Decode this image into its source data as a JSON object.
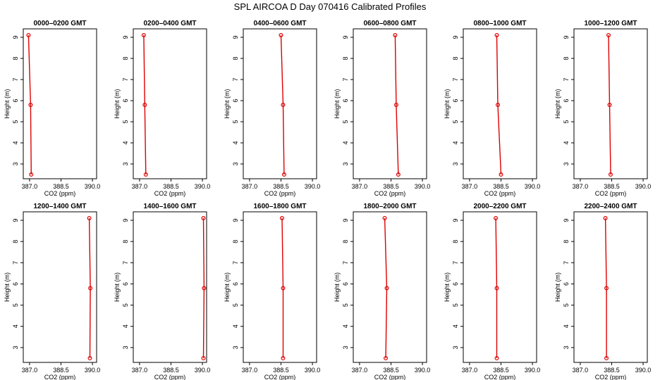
{
  "title": "SPL AIRCOA D  Day 070416  Calibrated Profiles",
  "colors": {
    "series": "#dd0000",
    "axes": "#000000",
    "background": "#ffffff"
  },
  "chart_data": {
    "type": "line",
    "layout": "2 rows x 6 panels",
    "xlabel": "CO2 (ppm)",
    "ylabel": "Height (m)",
    "xlim": [
      386.7,
      390.2
    ],
    "ylim": [
      2.3,
      9.4
    ],
    "xticks": [
      387.0,
      388.5,
      390.0
    ],
    "xtick_labels": [
      "387.0",
      "388.5",
      "390.0"
    ],
    "yticks": [
      3,
      4,
      5,
      6,
      7,
      8,
      9
    ],
    "yticks_labels": [
      "3",
      "4",
      "5",
      "6",
      "7",
      "8",
      "9"
    ],
    "grid": false,
    "panels": [
      {
        "title": "0000–0200 GMT",
        "x": [
          386.95,
          387.05,
          387.08
        ],
        "y": [
          9.1,
          5.8,
          2.5
        ]
      },
      {
        "title": "0200–0400 GMT",
        "x": [
          387.2,
          387.25,
          387.3
        ],
        "y": [
          9.1,
          5.8,
          2.5
        ]
      },
      {
        "title": "0400–0600 GMT",
        "x": [
          388.5,
          388.6,
          388.65
        ],
        "y": [
          9.1,
          5.8,
          2.5
        ]
      },
      {
        "title": "0600–0800 GMT",
        "x": [
          388.7,
          388.75,
          388.85
        ],
        "y": [
          9.1,
          5.8,
          2.5
        ]
      },
      {
        "title": "0800–1000 GMT",
        "x": [
          388.3,
          388.35,
          388.5
        ],
        "y": [
          9.1,
          5.8,
          2.5
        ]
      },
      {
        "title": "1000–1200 GMT",
        "x": [
          388.35,
          388.4,
          388.45
        ],
        "y": [
          9.1,
          5.8,
          2.5
        ]
      },
      {
        "title": "1200–1400 GMT",
        "x": [
          389.85,
          389.9,
          389.88
        ],
        "y": [
          9.1,
          5.8,
          2.5
        ]
      },
      {
        "title": "1400–1600 GMT",
        "x": [
          390.05,
          390.08,
          390.05
        ],
        "y": [
          9.1,
          5.8,
          2.5
        ]
      },
      {
        "title": "1600–1800 GMT",
        "x": [
          388.55,
          388.6,
          388.6
        ],
        "y": [
          9.1,
          5.8,
          2.5
        ]
      },
      {
        "title": "1800–2000 GMT",
        "x": [
          388.2,
          388.3,
          388.25
        ],
        "y": [
          9.1,
          5.8,
          2.5
        ]
      },
      {
        "title": "2000–2200 GMT",
        "x": [
          388.25,
          388.3,
          388.3
        ],
        "y": [
          9.1,
          5.8,
          2.5
        ]
      },
      {
        "title": "2200–2400 GMT",
        "x": [
          388.2,
          388.25,
          388.25
        ],
        "y": [
          9.1,
          5.8,
          2.5
        ]
      }
    ]
  }
}
